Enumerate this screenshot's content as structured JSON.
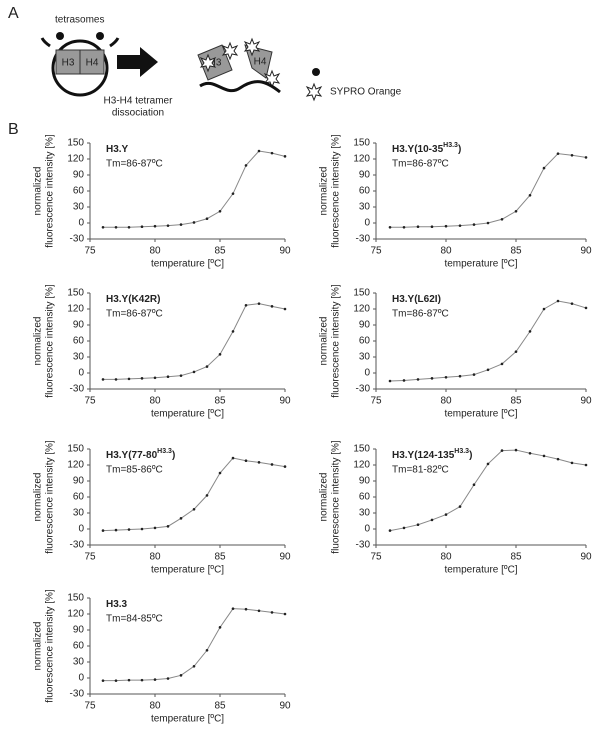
{
  "panel_a": {
    "label": "A",
    "tetrasome_label": "tetrasomes",
    "h3": "H3",
    "h4": "H4",
    "step_label": [
      "H3-H4 tetramer",
      "dissociation"
    ],
    "free_h3": "H3",
    "free_h4": "H4",
    "dye_label": "SYPRO Orange"
  },
  "panel_b_label": "B",
  "chart_data": [
    {
      "type": "line",
      "title": "H3.Y",
      "subtitle": "Tm=86-87ºC",
      "xlabel": "temperature [ºC]",
      "ylabel": [
        "normalized",
        "fluorescence intensity [%]"
      ],
      "x": [
        76,
        77,
        78,
        79,
        80,
        81,
        82,
        83,
        84,
        85,
        86,
        87,
        88,
        89,
        90
      ],
      "values": [
        -8,
        -8,
        -8,
        -7,
        -6,
        -5,
        -3,
        1,
        8,
        22,
        55,
        108,
        135,
        131,
        125
      ],
      "color": "#888888",
      "xlim": [
        75,
        90
      ],
      "xticks": [
        75,
        80,
        85,
        90
      ],
      "ylim": [
        -30,
        150
      ],
      "yticks": [
        -30,
        0,
        30,
        60,
        90,
        120,
        150
      ]
    },
    {
      "type": "line",
      "title": "H3.Y(10-35",
      "title_sup": "H3.3",
      "title_end": ")",
      "subtitle": "Tm=86-87ºC",
      "xlabel": "temperature [ºC]",
      "ylabel": [
        "normalized",
        "fluorescence intensity [%]"
      ],
      "x": [
        76,
        77,
        78,
        79,
        80,
        81,
        82,
        83,
        84,
        85,
        86,
        87,
        88,
        89,
        90
      ],
      "values": [
        -8,
        -8,
        -7,
        -7,
        -6,
        -5,
        -3,
        0,
        7,
        22,
        52,
        103,
        130,
        127,
        123
      ],
      "color": "#888888",
      "xlim": [
        75,
        90
      ],
      "xticks": [
        75,
        80,
        85,
        90
      ],
      "ylim": [
        -30,
        150
      ],
      "yticks": [
        -30,
        0,
        30,
        60,
        90,
        120,
        150
      ]
    },
    {
      "type": "line",
      "title": "H3.Y(K42R)",
      "subtitle": "Tm=86-87ºC",
      "xlabel": "temperature [ºC]",
      "ylabel": [
        "normalized",
        "fluorescence intensity [%]"
      ],
      "x": [
        76,
        77,
        78,
        79,
        80,
        81,
        82,
        83,
        84,
        85,
        86,
        87,
        88,
        89,
        90
      ],
      "values": [
        -12,
        -12,
        -11,
        -10,
        -9,
        -7,
        -5,
        2,
        12,
        35,
        78,
        127,
        130,
        125,
        120
      ],
      "color": "#888888",
      "xlim": [
        75,
        90
      ],
      "xticks": [
        75,
        80,
        85,
        90
      ],
      "ylim": [
        -30,
        150
      ],
      "yticks": [
        -30,
        0,
        30,
        60,
        90,
        120,
        150
      ]
    },
    {
      "type": "line",
      "title": "H3.Y(L62I)",
      "subtitle": "Tm=86-87ºC",
      "xlabel": "temperature [ºC]",
      "ylabel": [
        "normalized",
        "fluorescence intensity [%]"
      ],
      "x": [
        76,
        77,
        78,
        79,
        80,
        81,
        82,
        83,
        84,
        85,
        86,
        87,
        88,
        89,
        90
      ],
      "values": [
        -15,
        -14,
        -12,
        -10,
        -8,
        -6,
        -3,
        6,
        17,
        40,
        78,
        120,
        135,
        130,
        122
      ],
      "color": "#888888",
      "xlim": [
        75,
        90
      ],
      "xticks": [
        75,
        80,
        85,
        90
      ],
      "ylim": [
        -30,
        150
      ],
      "yticks": [
        -30,
        0,
        30,
        60,
        90,
        120,
        150
      ]
    },
    {
      "type": "line",
      "title": "H3.Y(77-80",
      "title_sup": "H3.3",
      "title_end": ")",
      "subtitle": "Tm=85-86ºC",
      "xlabel": "temperature [ºC]",
      "ylabel": [
        "normalized",
        "fluorescence intensity [%]"
      ],
      "x": [
        76,
        77,
        78,
        79,
        80,
        81,
        82,
        83,
        84,
        85,
        86,
        87,
        88,
        89,
        90
      ],
      "values": [
        -3,
        -2,
        -1,
        0,
        2,
        5,
        20,
        37,
        63,
        105,
        133,
        128,
        125,
        121,
        117
      ],
      "color": "#888888",
      "xlim": [
        75,
        90
      ],
      "xticks": [
        75,
        80,
        85,
        90
      ],
      "ylim": [
        -30,
        150
      ],
      "yticks": [
        -30,
        0,
        30,
        60,
        90,
        120,
        150
      ]
    },
    {
      "type": "line",
      "title": "H3.Y(124-135",
      "title_sup": "H3.3",
      "title_end": ")",
      "subtitle": "Tm=81-82ºC",
      "xlabel": "temperature [ºC]",
      "ylabel": [
        "normalized",
        "fluorescence intensity [%]"
      ],
      "x": [
        76,
        77,
        78,
        79,
        80,
        81,
        82,
        83,
        84,
        85,
        86,
        87,
        88,
        89,
        90
      ],
      "values": [
        -3,
        2,
        8,
        17,
        27,
        42,
        83,
        122,
        147,
        148,
        142,
        137,
        131,
        124,
        120
      ],
      "color": "#888888",
      "xlim": [
        75,
        90
      ],
      "xticks": [
        75,
        80,
        85,
        90
      ],
      "ylim": [
        -30,
        150
      ],
      "yticks": [
        -30,
        0,
        30,
        60,
        90,
        120,
        150
      ]
    },
    {
      "type": "line",
      "title": "H3.3",
      "subtitle": "Tm=84-85ºC",
      "xlabel": "temperature [ºC]",
      "ylabel": [
        "normalized",
        "fluorescence intensity [%]"
      ],
      "x": [
        76,
        77,
        78,
        79,
        80,
        81,
        82,
        83,
        84,
        85,
        86,
        87,
        88,
        89,
        90
      ],
      "values": [
        -5,
        -5,
        -4,
        -4,
        -3,
        -1,
        5,
        22,
        52,
        95,
        130,
        129,
        126,
        123,
        120
      ],
      "color": "#888888",
      "xlim": [
        75,
        90
      ],
      "xticks": [
        75,
        80,
        85,
        90
      ],
      "ylim": [
        -30,
        150
      ],
      "yticks": [
        -30,
        0,
        30,
        60,
        90,
        120,
        150
      ]
    }
  ]
}
